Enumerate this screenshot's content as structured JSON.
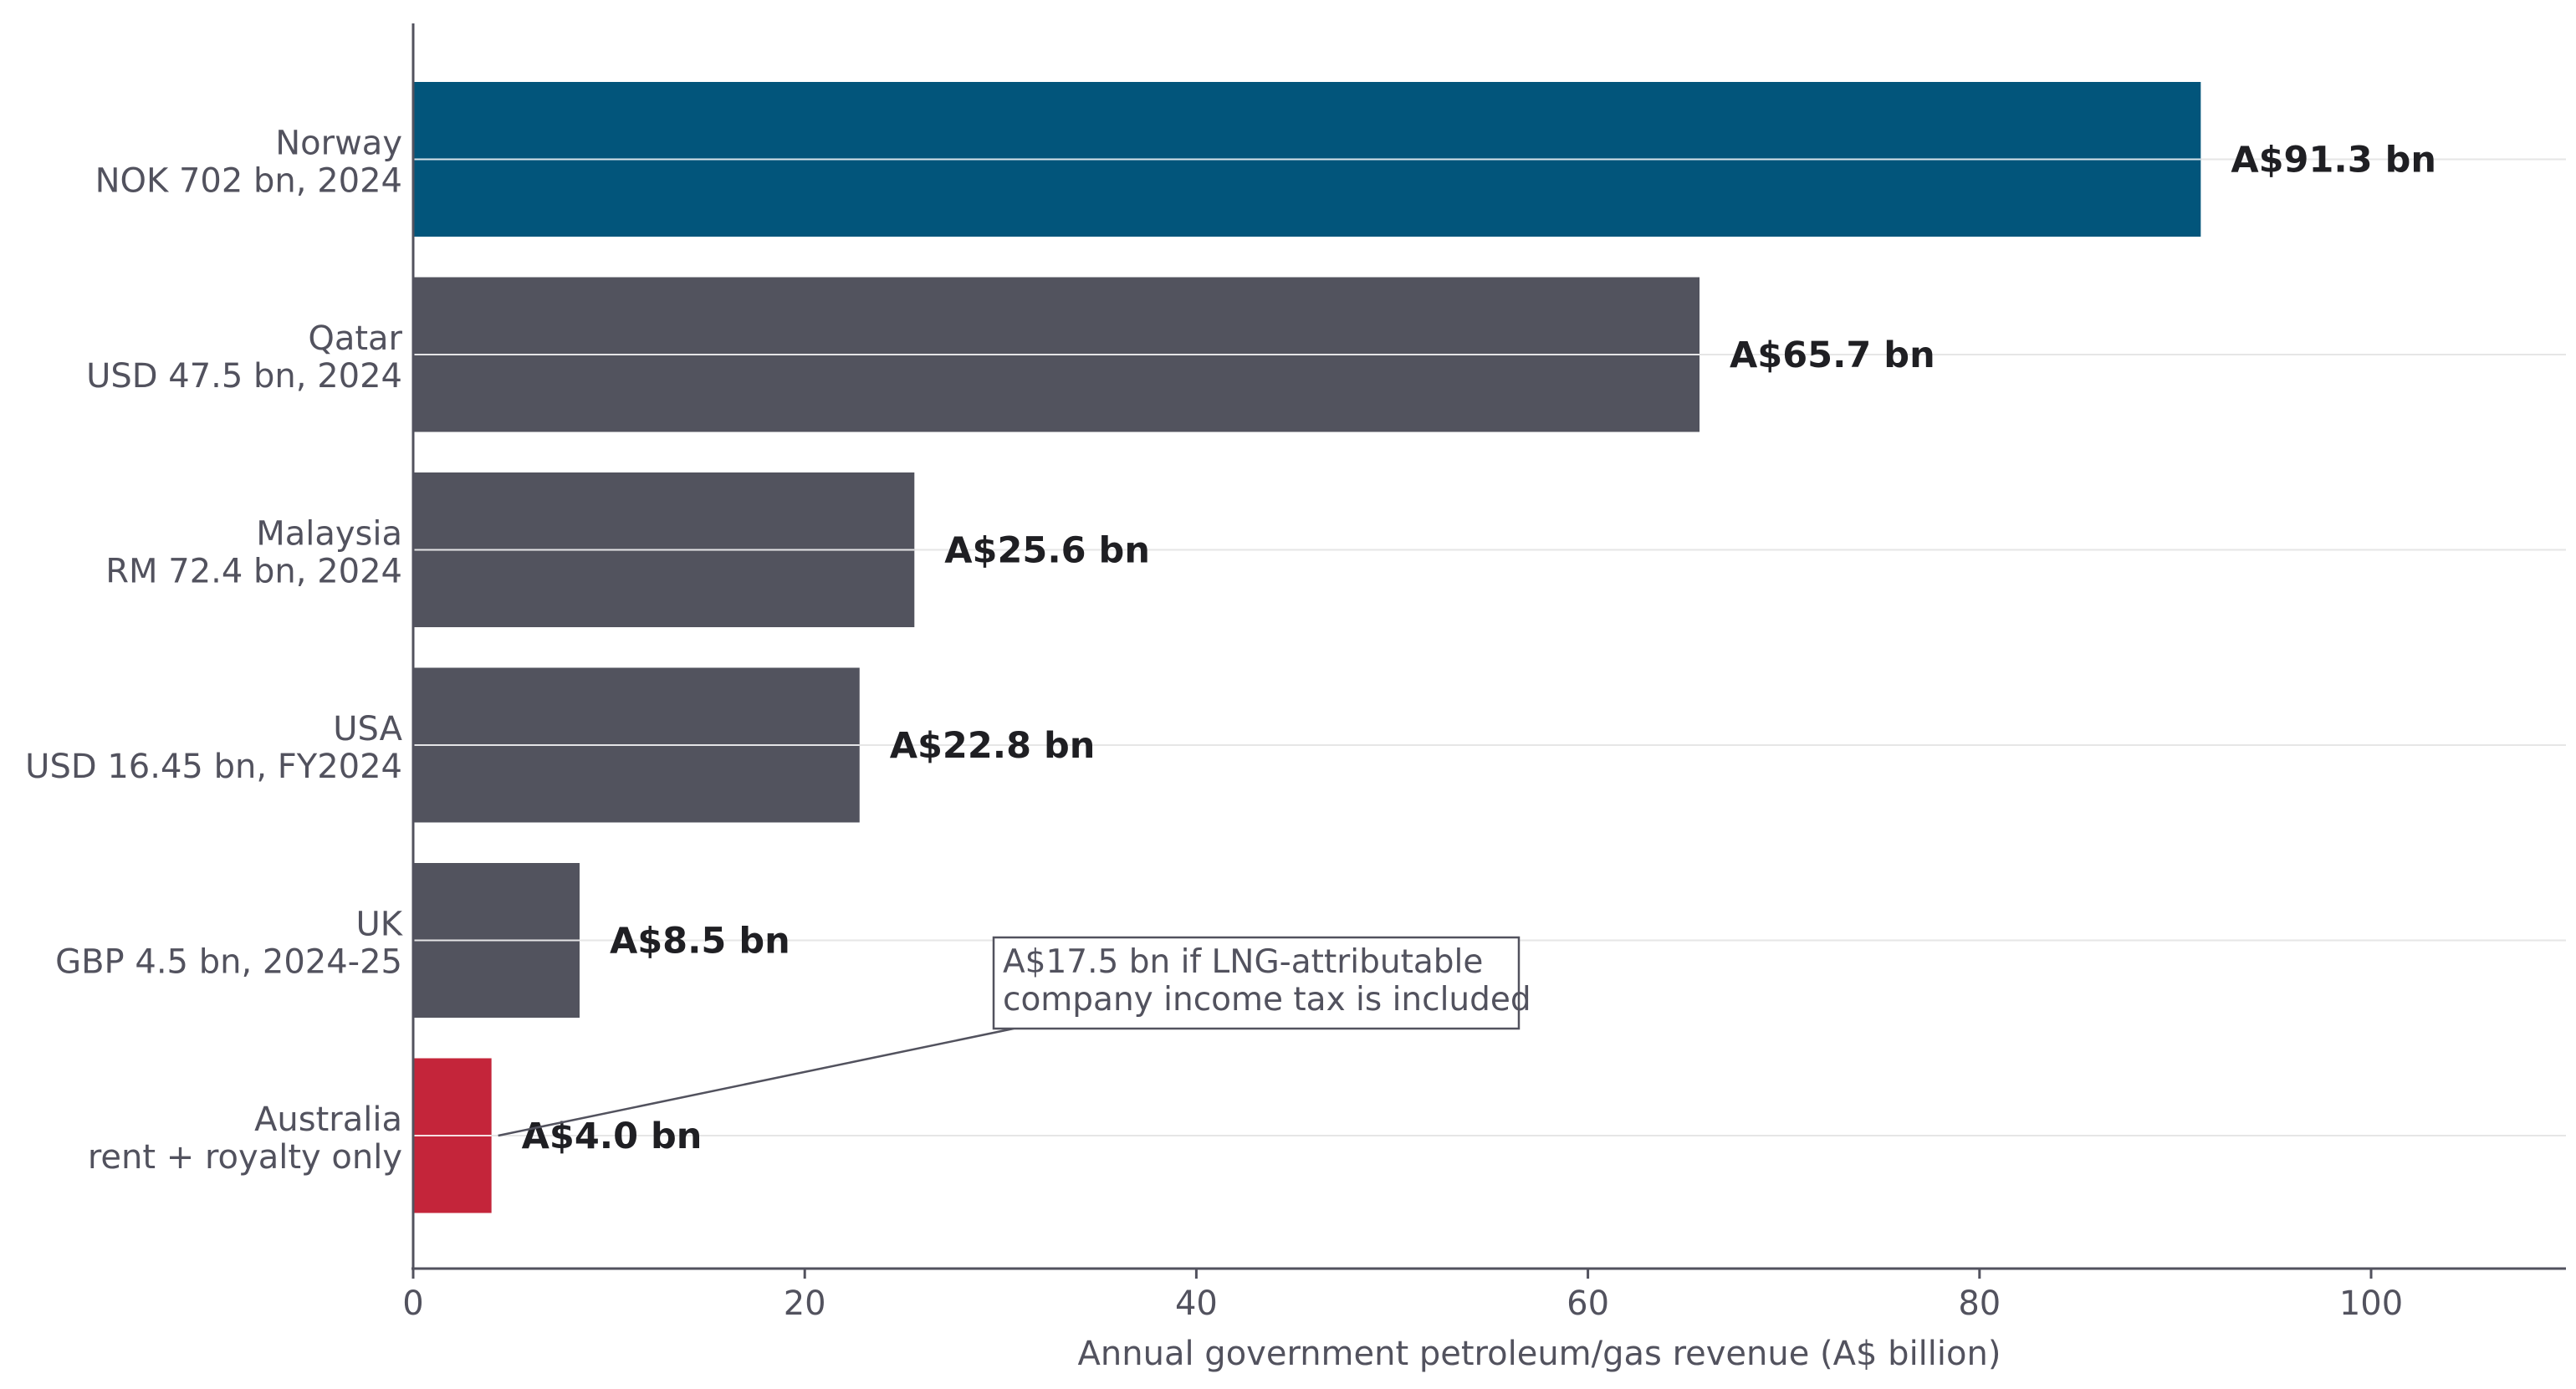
{
  "chart_data": {
    "type": "bar",
    "orientation": "horizontal",
    "categories": [
      {
        "name": "Norway",
        "detail": "NOK 702 bn, 2024"
      },
      {
        "name": "Qatar",
        "detail": "USD 47.5 bn, 2024"
      },
      {
        "name": "Malaysia",
        "detail": "RM 72.4 bn, 2024"
      },
      {
        "name": "USA",
        "detail": "USD 16.45 bn, FY2024"
      },
      {
        "name": "UK",
        "detail": "GBP 4.5 bn, 2024-25"
      },
      {
        "name": "Australia",
        "detail": "rent + royalty only"
      }
    ],
    "values": [
      91.3,
      65.7,
      25.6,
      22.8,
      8.5,
      4.0
    ],
    "value_labels": [
      "A$91.3 bn",
      "A$65.7 bn",
      "A$25.6 bn",
      "A$22.8 bn",
      "A$8.5 bn",
      "A$4.0 bn"
    ],
    "bar_colors": [
      "#02557b",
      "#52535e",
      "#52535e",
      "#52535e",
      "#52535e",
      "#c4253a"
    ],
    "xlabel": "Annual government petroleum/gas revenue (A$ billion)",
    "xlim": [
      0,
      110
    ],
    "xticks": [
      0,
      20,
      40,
      60,
      80,
      100
    ],
    "grid": "horizontal",
    "annotation": {
      "lines": [
        "A$17.5 bn if LNG-attributable",
        "company income tax is included"
      ],
      "target_category": "Australia",
      "target_value": 4.0
    },
    "colors": {
      "axis": "#52525e",
      "grid": "#e6e6e6",
      "text": "#52525e",
      "value_text": "#1f1f23"
    }
  }
}
